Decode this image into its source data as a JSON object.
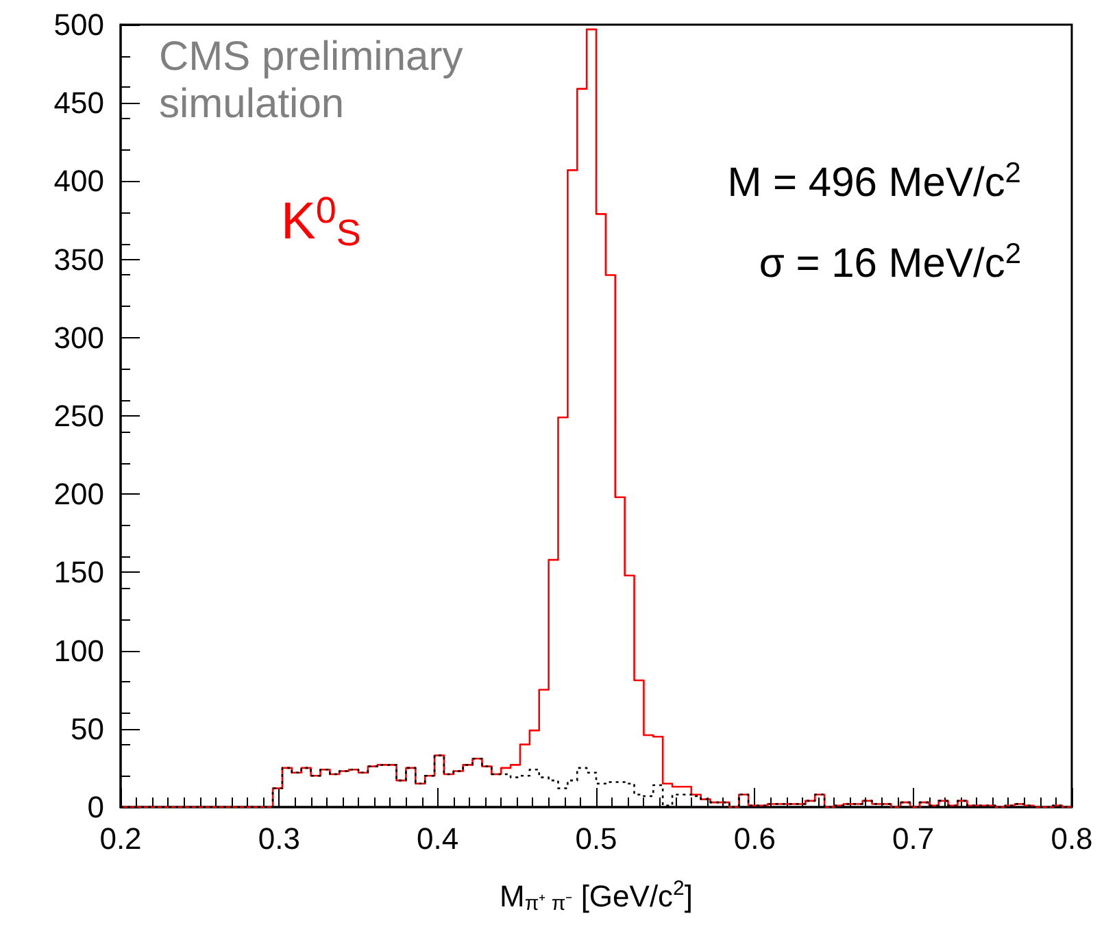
{
  "chart_data": {
    "type": "histogram",
    "xlabel": "M$_{π⁺ π⁻}$ [GeV/c$^{2}$]",
    "annotations": [
      "CMS preliminary simulation",
      "K$^{0}$$_{S}$",
      "M = 496 MeV/c$^{2}$",
      "σ = 16 MeV/c$^{2}$"
    ],
    "bins": [
      0.2,
      0.206,
      0.212,
      0.218,
      0.224,
      0.23,
      0.236,
      0.242,
      0.248,
      0.254,
      0.26,
      0.266,
      0.272,
      0.278,
      0.284,
      0.29,
      0.296,
      0.302,
      0.308,
      0.314,
      0.32,
      0.326,
      0.332,
      0.338,
      0.344,
      0.35,
      0.356,
      0.362,
      0.368,
      0.374,
      0.38,
      0.386,
      0.392,
      0.398,
      0.404,
      0.41,
      0.416,
      0.422,
      0.428,
      0.434,
      0.44,
      0.446,
      0.452,
      0.458,
      0.464,
      0.47,
      0.476,
      0.482,
      0.488,
      0.494,
      0.5,
      0.506,
      0.512,
      0.518,
      0.524,
      0.53,
      0.536,
      0.542,
      0.548,
      0.554,
      0.56,
      0.566,
      0.572,
      0.578,
      0.584,
      0.59,
      0.596,
      0.602,
      0.608,
      0.614,
      0.62,
      0.626,
      0.632,
      0.638,
      0.644,
      0.65,
      0.656,
      0.662,
      0.668,
      0.674,
      0.68,
      0.686,
      0.692,
      0.698,
      0.704,
      0.71,
      0.716,
      0.722,
      0.728,
      0.734,
      0.74,
      0.746,
      0.752,
      0.758,
      0.764,
      0.77,
      0.776,
      0.782,
      0.788,
      0.794,
      0.8
    ],
    "series": [
      {
        "color": "#ff0000",
        "line_style": "solid",
        "values": [
          0,
          0,
          0,
          0,
          0,
          0,
          0,
          0,
          0,
          0,
          0,
          0,
          0,
          0,
          0,
          0,
          12,
          25,
          22,
          25,
          20,
          24,
          21,
          23,
          24,
          22,
          26,
          27,
          27,
          17,
          25,
          15,
          20,
          33,
          21,
          23,
          27,
          31,
          26,
          21,
          25,
          27,
          40,
          49,
          75,
          158,
          249,
          407,
          459,
          497,
          379,
          340,
          198,
          148,
          81,
          46,
          45,
          15,
          13,
          13,
          8,
          5,
          3,
          3,
          0,
          8,
          1,
          1,
          2,
          2,
          2,
          2,
          4,
          8,
          0,
          1,
          2,
          2,
          4,
          2,
          2,
          0,
          3,
          0,
          3,
          1,
          4,
          1,
          4,
          1,
          1,
          1,
          0,
          1,
          2,
          1,
          0,
          0,
          1,
          0
        ]
      },
      {
        "color": "#000000",
        "line_style": "dotted",
        "values": [
          0,
          0,
          0,
          0,
          0,
          0,
          0,
          0,
          0,
          0,
          0,
          0,
          0,
          0,
          0,
          0,
          12,
          25,
          22,
          25,
          20,
          24,
          21,
          23,
          24,
          22,
          26,
          27,
          27,
          17,
          25,
          15,
          20,
          33,
          21,
          23,
          27,
          31,
          26,
          21,
          21,
          19,
          20,
          24,
          19,
          17,
          12,
          17,
          25,
          22,
          15,
          16,
          16,
          15,
          8,
          7,
          14,
          1,
          8,
          8,
          7,
          5,
          3,
          3,
          0,
          8,
          1,
          1,
          2,
          2,
          2,
          2,
          4,
          8,
          0,
          1,
          2,
          2,
          4,
          2,
          2,
          0,
          3,
          0,
          3,
          1,
          4,
          1,
          4,
          1,
          1,
          1,
          0,
          1,
          2,
          1,
          0,
          0,
          1,
          0
        ]
      }
    ],
    "xlim": [
      0.2,
      0.8
    ],
    "xticks": [
      0.2,
      0.3,
      0.4,
      0.5,
      0.6,
      0.7,
      0.8
    ],
    "ylim": [
      0,
      500
    ],
    "yticks": [
      0,
      50,
      100,
      150,
      200,
      250,
      300,
      350,
      400,
      450,
      500
    ]
  }
}
